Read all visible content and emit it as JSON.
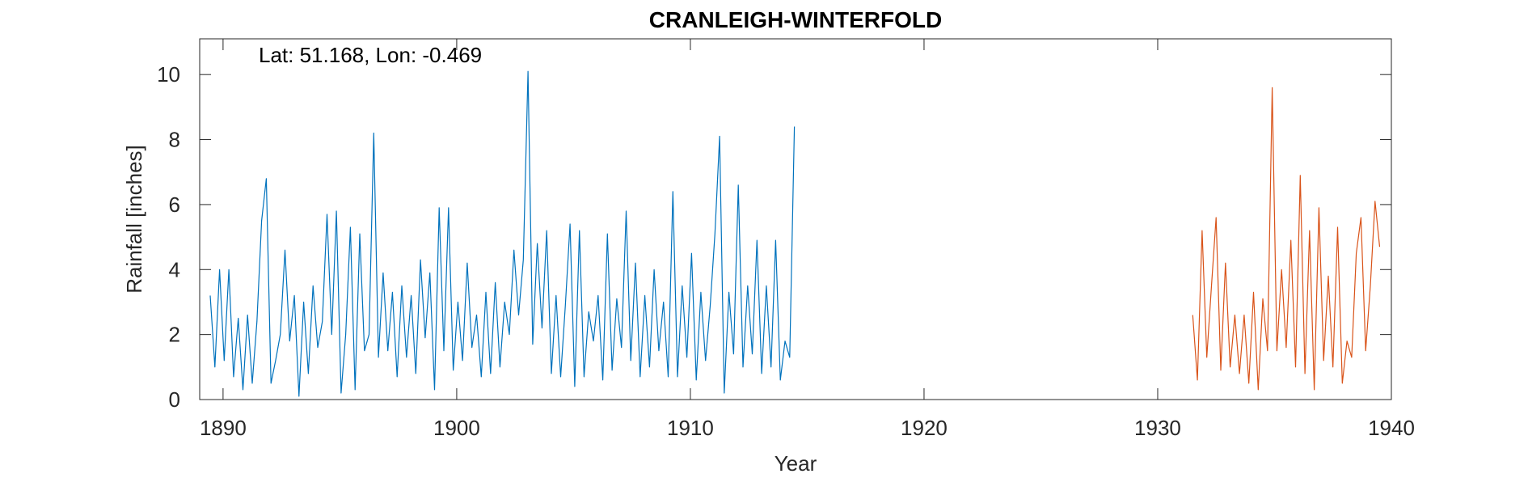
{
  "chart_data": {
    "type": "line",
    "title": "CRANLEIGH-WINTERFOLD",
    "annotation": "Lat: 51.168, Lon: -0.469",
    "xlabel": "Year",
    "ylabel": "Rainfall [inches]",
    "xlim": [
      1889,
      1940
    ],
    "ylim": [
      0,
      11.1
    ],
    "xticks": [
      1890,
      1900,
      1910,
      1920,
      1930,
      1940
    ],
    "yticks": [
      0,
      2,
      4,
      6,
      8,
      10
    ],
    "grid": false,
    "box": true,
    "series": [
      {
        "color": "#0072BD",
        "x": [
          1889.45,
          1889.65,
          1889.85,
          1890.05,
          1890.25,
          1890.45,
          1890.65,
          1890.85,
          1891.05,
          1891.25,
          1891.45,
          1891.65,
          1891.85,
          1892.05,
          1892.25,
          1892.45,
          1892.65,
          1892.85,
          1893.05,
          1893.25,
          1893.45,
          1893.65,
          1893.85,
          1894.05,
          1894.25,
          1894.45,
          1894.65,
          1894.85,
          1895.05,
          1895.25,
          1895.45,
          1895.65,
          1895.85,
          1896.05,
          1896.25,
          1896.45,
          1896.65,
          1896.85,
          1897.05,
          1897.25,
          1897.45,
          1897.65,
          1897.85,
          1898.05,
          1898.25,
          1898.45,
          1898.65,
          1898.85,
          1899.05,
          1899.25,
          1899.45,
          1899.65,
          1899.85,
          1900.05,
          1900.25,
          1900.45,
          1900.65,
          1900.85,
          1901.05,
          1901.25,
          1901.45,
          1901.65,
          1901.85,
          1902.05,
          1902.25,
          1902.45,
          1902.65,
          1902.85,
          1903.05,
          1903.25,
          1903.45,
          1903.65,
          1903.85,
          1904.05,
          1904.25,
          1904.45,
          1904.65,
          1904.85,
          1905.05,
          1905.25,
          1905.45,
          1905.65,
          1905.85,
          1906.05,
          1906.25,
          1906.45,
          1906.65,
          1906.85,
          1907.05,
          1907.25,
          1907.45,
          1907.65,
          1907.85,
          1908.05,
          1908.25,
          1908.45,
          1908.65,
          1908.85,
          1909.05,
          1909.25,
          1909.45,
          1909.65,
          1909.85,
          1910.05,
          1910.25,
          1910.45,
          1910.65,
          1910.85,
          1911.05,
          1911.25,
          1911.45,
          1911.65,
          1911.85,
          1912.05,
          1912.25,
          1912.45,
          1912.65,
          1912.85,
          1913.05,
          1913.25,
          1913.45,
          1913.65,
          1913.85,
          1914.05,
          1914.25,
          1914.45
        ],
        "y": [
          3.2,
          1.0,
          4.0,
          1.2,
          4.0,
          0.7,
          2.5,
          0.3,
          2.6,
          0.5,
          2.4,
          5.5,
          6.8,
          0.5,
          1.2,
          2.0,
          4.6,
          1.8,
          3.2,
          0.1,
          3.0,
          0.8,
          3.5,
          1.6,
          2.4,
          5.7,
          2.0,
          5.8,
          0.2,
          2.0,
          5.3,
          0.3,
          5.1,
          1.5,
          2.0,
          8.2,
          1.3,
          3.9,
          1.5,
          3.3,
          0.7,
          3.5,
          1.3,
          3.2,
          0.8,
          4.3,
          1.9,
          3.9,
          0.3,
          5.9,
          1.5,
          5.9,
          0.9,
          3.0,
          1.2,
          4.2,
          1.6,
          2.6,
          0.7,
          3.3,
          0.8,
          3.6,
          1.0,
          3.0,
          2.0,
          4.6,
          2.6,
          4.3,
          10.1,
          1.7,
          4.8,
          2.2,
          5.2,
          0.8,
          3.2,
          0.7,
          2.9,
          5.4,
          0.4,
          5.2,
          0.7,
          2.7,
          1.8,
          3.2,
          0.6,
          5.1,
          0.9,
          3.1,
          1.6,
          5.8,
          1.2,
          4.2,
          0.7,
          3.2,
          1.0,
          4.0,
          1.5,
          3.0,
          0.7,
          6.4,
          0.7,
          3.5,
          1.3,
          4.5,
          0.6,
          3.3,
          1.2,
          2.9,
          5.1,
          8.1,
          0.2,
          3.3,
          1.4,
          6.6,
          1.0,
          3.5,
          1.4,
          4.9,
          0.8,
          3.5,
          1.0,
          4.9,
          0.6,
          1.8,
          1.3,
          8.4
        ]
      },
      {
        "color": "#D95319",
        "x": [
          1931.5,
          1931.7,
          1931.9,
          1932.1,
          1932.3,
          1932.5,
          1932.7,
          1932.9,
          1933.1,
          1933.3,
          1933.5,
          1933.7,
          1933.9,
          1934.1,
          1934.3,
          1934.5,
          1934.7,
          1934.9,
          1935.1,
          1935.3,
          1935.5,
          1935.7,
          1935.9,
          1936.1,
          1936.3,
          1936.5,
          1936.7,
          1936.9,
          1937.1,
          1937.3,
          1937.5,
          1937.7,
          1937.9,
          1938.1,
          1938.3,
          1938.5,
          1938.7,
          1938.9,
          1939.1,
          1939.3,
          1939.5
        ],
        "y": [
          2.6,
          0.6,
          5.2,
          1.3,
          3.5,
          5.6,
          0.9,
          4.2,
          1.0,
          2.6,
          0.8,
          2.6,
          0.5,
          3.3,
          0.3,
          3.1,
          1.5,
          9.6,
          1.5,
          4.0,
          1.6,
          4.9,
          1.0,
          6.9,
          0.8,
          5.2,
          0.3,
          5.9,
          1.2,
          3.8,
          1.0,
          5.3,
          0.5,
          1.8,
          1.3,
          4.5,
          5.6,
          1.5,
          3.5,
          6.1,
          4.7
        ]
      }
    ]
  }
}
